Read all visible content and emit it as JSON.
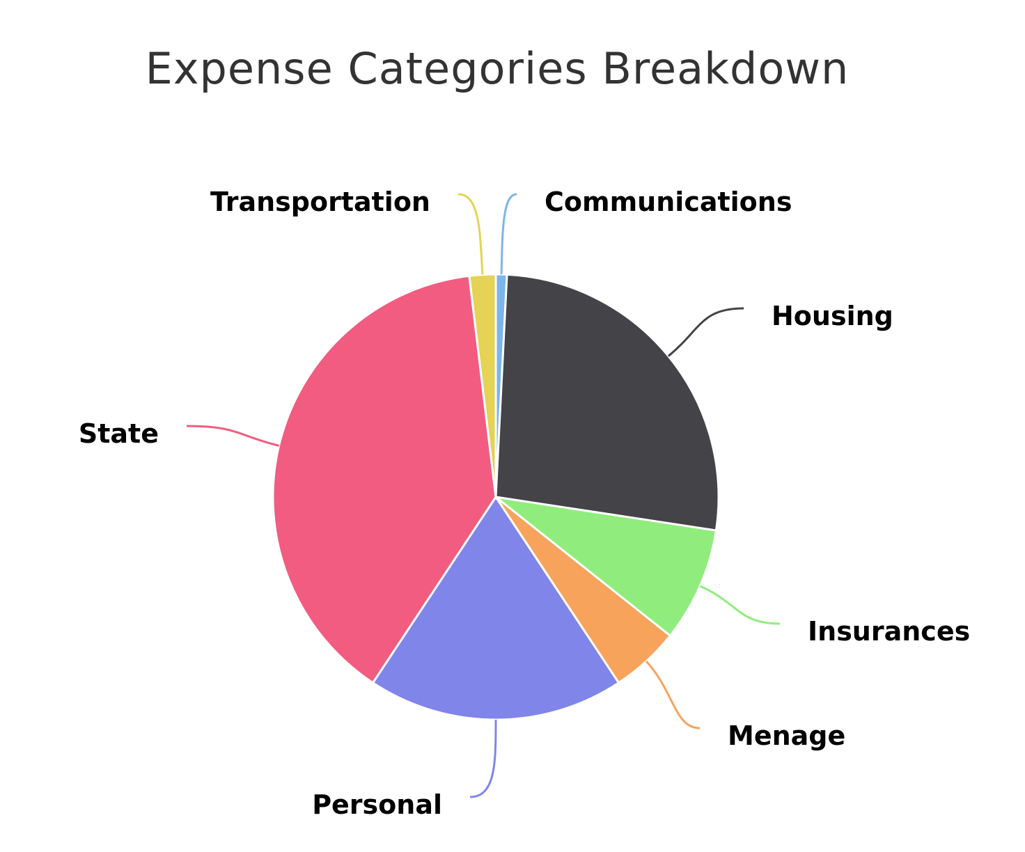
{
  "chart_data": {
    "type": "pie",
    "title": "Expense Categories Breakdown",
    "categories": [
      "Communications",
      "Housing",
      "Insurances",
      "Menage",
      "Personal",
      "State",
      "Transportation"
    ],
    "values": [
      0.8,
      26.6,
      8.3,
      5.0,
      18.6,
      38.8,
      1.9
    ],
    "colors": [
      "#7cb5ec",
      "#434348",
      "#90ed7d",
      "#f7a35c",
      "#8085e9",
      "#f15c80",
      "#e4d354"
    ],
    "start_angle_deg": 0,
    "direction": "clockwise",
    "data_labels": "outside-with-connectors",
    "legend": "none"
  }
}
